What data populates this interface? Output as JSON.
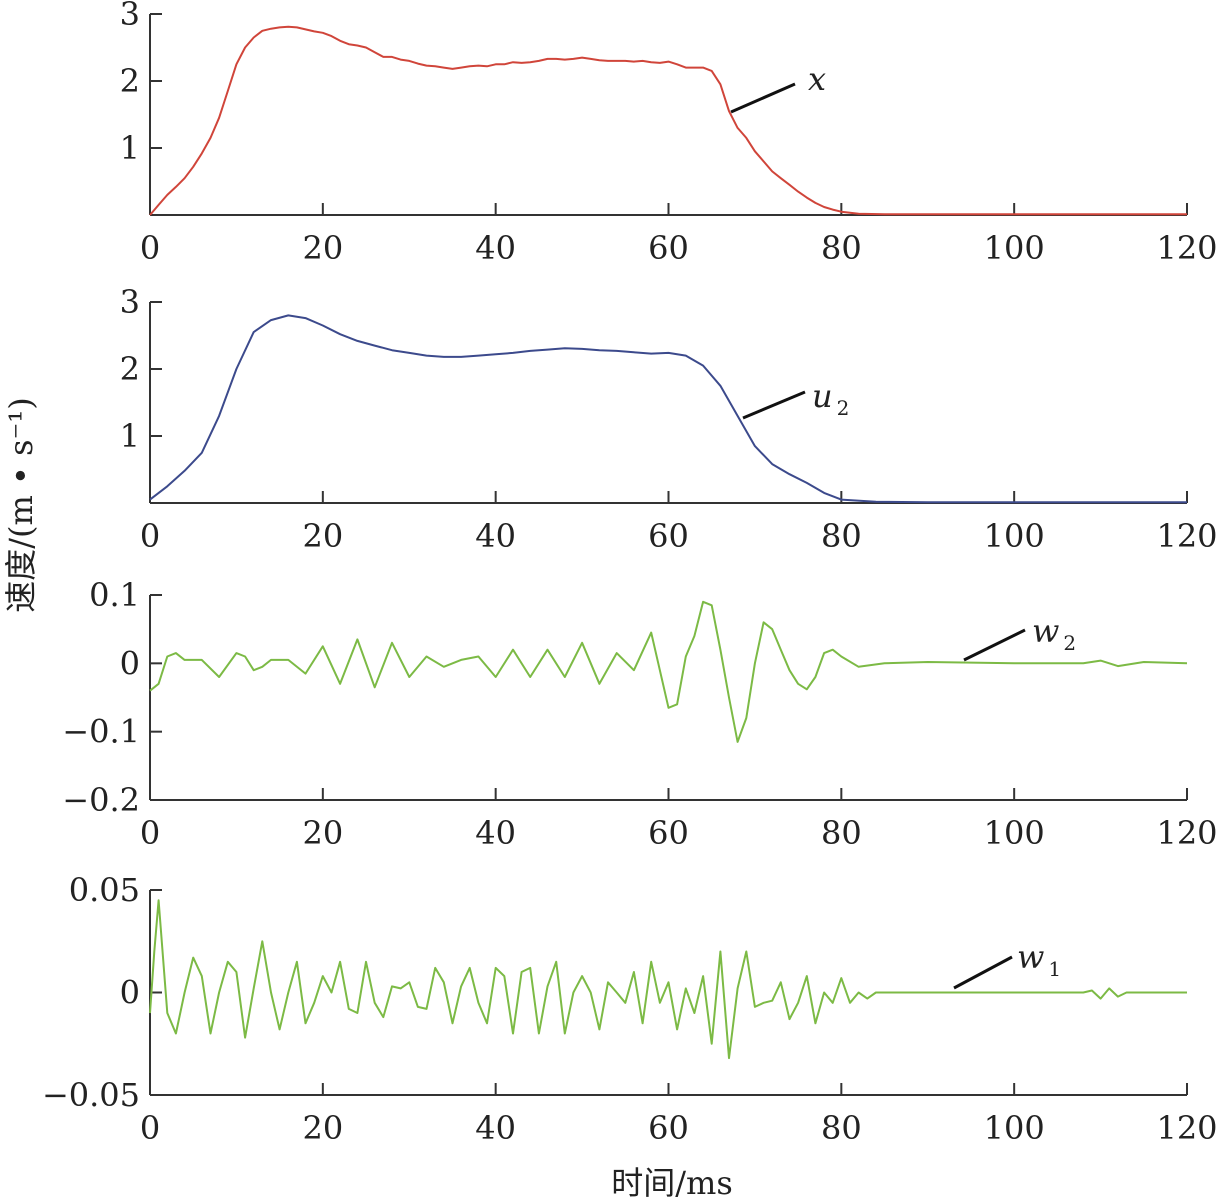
{
  "figure": {
    "ylabel": "速度/(m • s⁻¹)",
    "xlabel": "时间/ms"
  },
  "chart_data": [
    {
      "type": "line",
      "series": [
        {
          "name": "x",
          "color": "#d0453a"
        }
      ],
      "label_main": "x",
      "label_sub": "",
      "xlim": [
        0,
        120
      ],
      "xticks": [
        0,
        20,
        40,
        60,
        80,
        100,
        120
      ],
      "ylim": [
        0,
        3
      ],
      "yticks": [
        1,
        2,
        3
      ],
      "ytick_labels": [
        "1",
        "2",
        "3"
      ],
      "x": [
        0,
        1,
        2,
        3,
        4,
        5,
        6,
        7,
        8,
        9,
        10,
        11,
        12,
        13,
        14,
        15,
        16,
        17,
        18,
        19,
        20,
        21,
        22,
        23,
        24,
        25,
        26,
        27,
        28,
        29,
        30,
        31,
        32,
        33,
        34,
        35,
        36,
        37,
        38,
        39,
        40,
        41,
        42,
        43,
        44,
        45,
        46,
        47,
        48,
        49,
        50,
        51,
        52,
        53,
        54,
        55,
        56,
        57,
        58,
        59,
        60,
        61,
        62,
        63,
        64,
        65,
        66,
        67,
        68,
        69,
        70,
        71,
        72,
        73,
        74,
        75,
        76,
        77,
        78,
        79,
        80,
        82,
        85,
        90,
        100,
        110,
        112,
        120
      ],
      "y": [
        0,
        0.15,
        0.3,
        0.42,
        0.55,
        0.72,
        0.92,
        1.15,
        1.45,
        1.85,
        2.25,
        2.5,
        2.65,
        2.75,
        2.78,
        2.8,
        2.81,
        2.8,
        2.77,
        2.74,
        2.72,
        2.67,
        2.6,
        2.55,
        2.53,
        2.5,
        2.43,
        2.36,
        2.36,
        2.32,
        2.3,
        2.26,
        2.23,
        2.22,
        2.2,
        2.18,
        2.2,
        2.22,
        2.23,
        2.22,
        2.25,
        2.25,
        2.28,
        2.27,
        2.28,
        2.3,
        2.33,
        2.33,
        2.32,
        2.33,
        2.35,
        2.33,
        2.31,
        2.3,
        2.3,
        2.3,
        2.29,
        2.3,
        2.28,
        2.27,
        2.29,
        2.25,
        2.2,
        2.2,
        2.2,
        2.15,
        1.95,
        1.55,
        1.3,
        1.15,
        0.95,
        0.8,
        0.65,
        0.55,
        0.45,
        0.35,
        0.26,
        0.18,
        0.12,
        0.08,
        0.05,
        0.02,
        0.01,
        0.01,
        0.01,
        0.01,
        0.01,
        0.01
      ]
    },
    {
      "type": "line",
      "series": [
        {
          "name": "u2",
          "color": "#3c4a8c"
        }
      ],
      "label_main": "u",
      "label_sub": "2",
      "xlim": [
        0,
        120
      ],
      "xticks": [
        0,
        20,
        40,
        60,
        80,
        100,
        120
      ],
      "ylim": [
        0,
        3
      ],
      "yticks": [
        1,
        2,
        3
      ],
      "ytick_labels": [
        "1",
        "2",
        "3"
      ],
      "x": [
        0,
        2,
        4,
        6,
        8,
        10,
        12,
        14,
        16,
        18,
        20,
        22,
        24,
        26,
        28,
        30,
        32,
        34,
        36,
        38,
        40,
        42,
        44,
        46,
        48,
        50,
        52,
        54,
        56,
        58,
        60,
        62,
        64,
        66,
        68,
        70,
        72,
        74,
        76,
        78,
        80,
        84,
        90,
        100,
        110,
        120
      ],
      "y": [
        0.05,
        0.25,
        0.48,
        0.75,
        1.3,
        2.0,
        2.55,
        2.73,
        2.8,
        2.76,
        2.65,
        2.52,
        2.42,
        2.35,
        2.28,
        2.24,
        2.2,
        2.18,
        2.18,
        2.2,
        2.22,
        2.24,
        2.27,
        2.29,
        2.31,
        2.3,
        2.28,
        2.27,
        2.25,
        2.23,
        2.24,
        2.2,
        2.05,
        1.75,
        1.3,
        0.85,
        0.58,
        0.43,
        0.3,
        0.15,
        0.05,
        0.02,
        0.01,
        0.01,
        0.01,
        0.01
      ]
    },
    {
      "type": "line",
      "series": [
        {
          "name": "w2",
          "color": "#7cba45"
        }
      ],
      "label_main": "w",
      "label_sub": "2",
      "xlim": [
        0,
        120
      ],
      "xticks": [
        0,
        20,
        40,
        60,
        80,
        100,
        120
      ],
      "ylim": [
        -0.2,
        0.1
      ],
      "yticks": [
        -0.2,
        -0.1,
        0,
        0.1
      ],
      "ytick_labels": [
        "−0.2",
        "−0.1",
        "0",
        "0.1"
      ],
      "x": [
        0,
        1,
        2,
        3,
        4,
        5,
        6,
        8,
        10,
        11,
        12,
        13,
        14,
        16,
        18,
        20,
        22,
        24,
        26,
        28,
        30,
        32,
        34,
        36,
        38,
        40,
        42,
        44,
        46,
        48,
        50,
        52,
        54,
        56,
        58,
        60,
        61,
        62,
        63,
        64,
        65,
        66,
        67,
        68,
        69,
        70,
        71,
        72,
        73,
        74,
        75,
        76,
        77,
        78,
        79,
        80,
        82,
        85,
        90,
        100,
        108,
        110,
        112,
        115,
        120
      ],
      "y": [
        -0.04,
        -0.03,
        0.01,
        0.015,
        0.005,
        0.005,
        0.005,
        -0.02,
        0.015,
        0.01,
        -0.01,
        -0.005,
        0.005,
        0.005,
        -0.015,
        0.025,
        -0.03,
        0.035,
        -0.035,
        0.03,
        -0.02,
        0.01,
        -0.005,
        0.005,
        0.01,
        -0.02,
        0.02,
        -0.02,
        0.02,
        -0.02,
        0.03,
        -0.03,
        0.015,
        -0.01,
        0.045,
        -0.065,
        -0.06,
        0.01,
        0.04,
        0.09,
        0.085,
        0.02,
        -0.05,
        -0.115,
        -0.08,
        0.0,
        0.06,
        0.05,
        0.02,
        -0.01,
        -0.03,
        -0.038,
        -0.02,
        0.015,
        0.02,
        0.01,
        -0.005,
        0.0,
        0.002,
        0.0,
        0.0,
        0.004,
        -0.004,
        0.002,
        0.0
      ]
    },
    {
      "type": "line",
      "series": [
        {
          "name": "w1",
          "color": "#7cba45"
        }
      ],
      "label_main": "w",
      "label_sub": "1",
      "xlim": [
        0,
        120
      ],
      "xticks": [
        0,
        20,
        40,
        60,
        80,
        100,
        120
      ],
      "ylim": [
        -0.05,
        0.05
      ],
      "yticks": [
        -0.05,
        0,
        0.05
      ],
      "ytick_labels": [
        "−0.05",
        "0",
        "0.05"
      ],
      "x": [
        0,
        0.5,
        1,
        2,
        3,
        4,
        5,
        6,
        7,
        8,
        9,
        10,
        11,
        12,
        13,
        14,
        15,
        16,
        17,
        18,
        19,
        20,
        21,
        22,
        23,
        24,
        25,
        26,
        27,
        28,
        29,
        30,
        31,
        32,
        33,
        34,
        35,
        36,
        37,
        38,
        39,
        40,
        41,
        42,
        43,
        44,
        45,
        46,
        47,
        48,
        49,
        50,
        51,
        52,
        53,
        54,
        55,
        56,
        57,
        58,
        59,
        60,
        61,
        62,
        63,
        64,
        65,
        66,
        67,
        68,
        69,
        70,
        71,
        72,
        73,
        74,
        75,
        76,
        77,
        78,
        79,
        80,
        81,
        82,
        83,
        84,
        85,
        90,
        100,
        108,
        109,
        110,
        111,
        112,
        113,
        115,
        120
      ],
      "y": [
        -0.01,
        0.02,
        0.045,
        -0.01,
        -0.02,
        0.0,
        0.017,
        0.008,
        -0.02,
        0.0,
        0.015,
        0.01,
        -0.022,
        0.002,
        0.025,
        0.0,
        -0.018,
        0.0,
        0.015,
        -0.015,
        -0.005,
        0.008,
        0.0,
        0.015,
        -0.008,
        -0.01,
        0.015,
        -0.005,
        -0.012,
        0.003,
        0.002,
        0.005,
        -0.007,
        -0.008,
        0.012,
        0.005,
        -0.015,
        0.003,
        0.012,
        -0.005,
        -0.015,
        0.012,
        0.008,
        -0.02,
        0.01,
        0.012,
        -0.02,
        0.003,
        0.015,
        -0.02,
        0.0,
        0.008,
        0.0,
        -0.018,
        0.005,
        0.0,
        -0.005,
        0.01,
        -0.015,
        0.015,
        -0.005,
        0.005,
        -0.018,
        0.002,
        -0.01,
        0.008,
        -0.025,
        0.02,
        -0.032,
        0.002,
        0.02,
        -0.007,
        -0.005,
        -0.004,
        0.005,
        -0.013,
        -0.005,
        0.008,
        -0.015,
        0.0,
        -0.005,
        0.007,
        -0.005,
        0.0,
        -0.003,
        0.0,
        0.0,
        0.0,
        0.0,
        0.0,
        0.001,
        -0.003,
        0.002,
        -0.002,
        0.0,
        0.0,
        0.0
      ]
    }
  ]
}
